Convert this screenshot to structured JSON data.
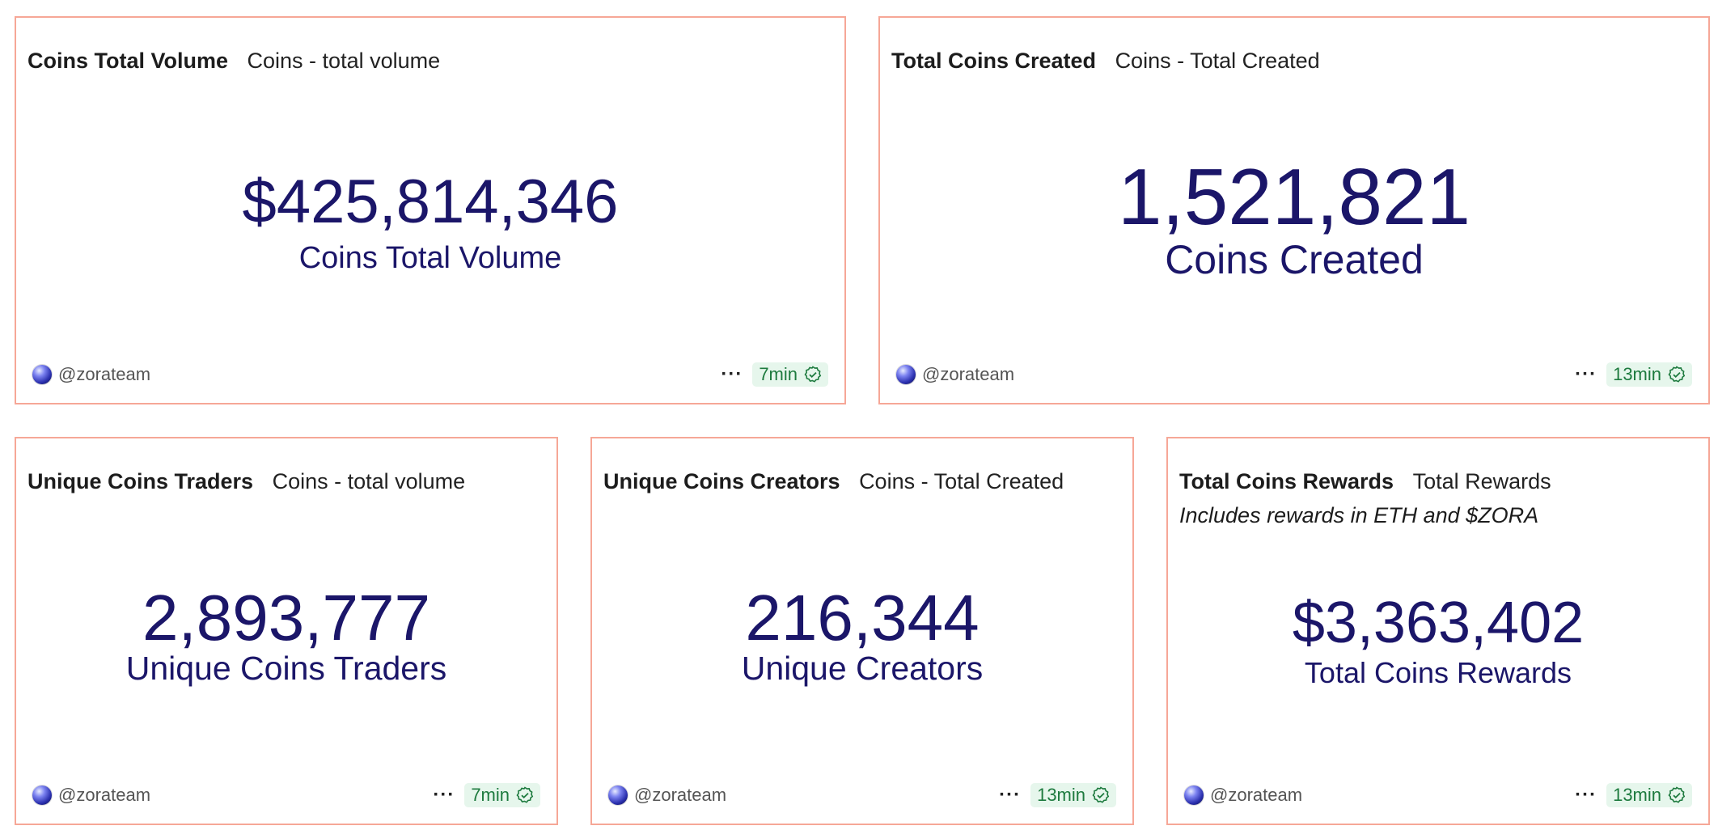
{
  "owner_handle": "@zorateam",
  "more_icon": "more-horizontal-icon",
  "verified_icon": "check-circle-icon",
  "cards": [
    {
      "title": "Coins Total Volume",
      "subtitle": "Coins - total volume",
      "value": "$425,814,346",
      "label": "Coins Total Volume",
      "refresh": "7min"
    },
    {
      "title": "Total Coins Created",
      "subtitle": "Coins - Total Created",
      "value": "1,521,821",
      "label": "Coins Created",
      "refresh": "13min"
    },
    {
      "title": "Unique Coins Traders",
      "subtitle": "Coins - total volume",
      "value": "2,893,777",
      "label": "Unique Coins Traders",
      "refresh": "7min"
    },
    {
      "title": "Unique Coins Creators",
      "subtitle": "Coins - Total Created",
      "value": "216,344",
      "label": "Unique Creators",
      "refresh": "13min"
    },
    {
      "title": "Total Coins Rewards",
      "subtitle": "Total Rewards",
      "note": "Includes rewards in ETH and $ZORA",
      "value": "$3,363,402",
      "label": "Total Coins Rewards",
      "refresh": "13min"
    }
  ],
  "colors": {
    "card_border": "#f6a797",
    "metric_text": "#1b1669",
    "badge_bg": "#e6f6ec",
    "badge_text": "#1d7a3e"
  }
}
